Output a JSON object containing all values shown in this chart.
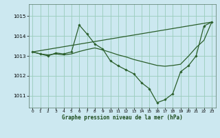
{
  "title": "Graphe pression niveau de la mer (hPa)",
  "bg_color": "#cce8f0",
  "grid_color": "#99ccbb",
  "line_color": "#2a5e2a",
  "xlim": [
    -0.5,
    23.5
  ],
  "ylim": [
    1010.4,
    1015.6
  ],
  "yticks": [
    1011,
    1012,
    1013,
    1014,
    1015
  ],
  "xticks": [
    0,
    1,
    2,
    3,
    4,
    5,
    6,
    7,
    8,
    9,
    10,
    11,
    12,
    13,
    14,
    15,
    16,
    17,
    18,
    19,
    20,
    21,
    22,
    23
  ],
  "series1_x": [
    0,
    1,
    2,
    3,
    4,
    5,
    6,
    7,
    8,
    9,
    10,
    11,
    12,
    13,
    14,
    15,
    16,
    17,
    18,
    19,
    20,
    21,
    22,
    23
  ],
  "series1_y": [
    1013.2,
    1013.1,
    1013.0,
    1013.15,
    1013.1,
    1013.2,
    1014.55,
    1014.1,
    1013.6,
    1013.35,
    1012.75,
    1012.5,
    1012.3,
    1012.1,
    1011.65,
    1011.35,
    1010.65,
    1010.8,
    1011.1,
    1012.2,
    1012.5,
    1013.0,
    1014.5,
    1014.7
  ],
  "series2_x": [
    0,
    23
  ],
  "series2_y": [
    1013.2,
    1014.7
  ],
  "series3_x": [
    0,
    1,
    2,
    3,
    4,
    5,
    6,
    7,
    8,
    9,
    10,
    11,
    12,
    13,
    14,
    15,
    16,
    17,
    18,
    19,
    20,
    21,
    22,
    23
  ],
  "series3_y": [
    1013.2,
    1013.1,
    1013.05,
    1013.1,
    1013.05,
    1013.1,
    1013.22,
    1013.32,
    1013.4,
    1013.3,
    1013.18,
    1013.05,
    1012.95,
    1012.82,
    1012.72,
    1012.62,
    1012.52,
    1012.48,
    1012.52,
    1012.58,
    1012.98,
    1013.42,
    1013.78,
    1014.7
  ]
}
